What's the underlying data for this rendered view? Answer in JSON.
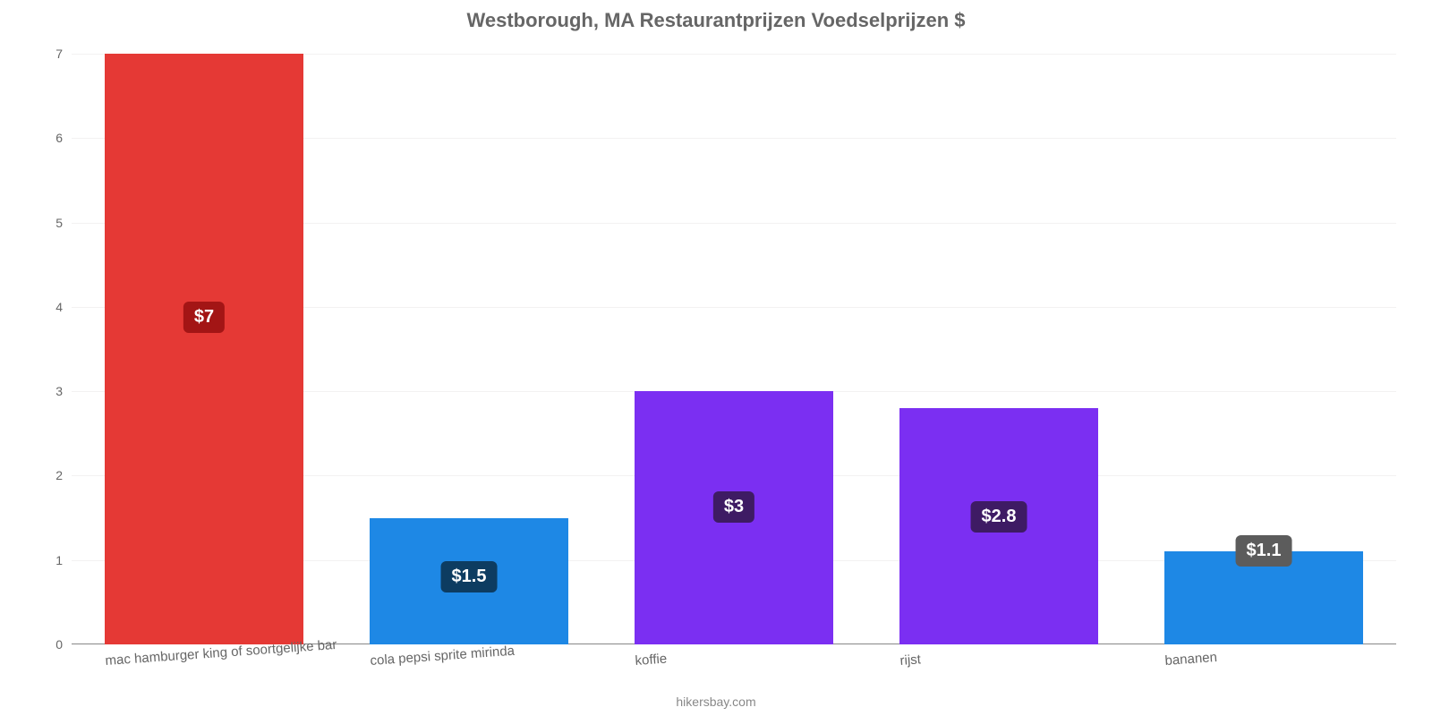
{
  "chart": {
    "type": "bar",
    "title": "Westborough, MA Restaurantprijzen Voedselprijzen $",
    "title_fontsize": 22,
    "title_color": "#666666",
    "credit": "hikersbay.com",
    "credit_color": "#888888",
    "credit_fontsize": 14,
    "background_color": "#ffffff",
    "grid_color": "#f3f1f1",
    "axis_color": "#888888",
    "ylim": [
      0,
      7
    ],
    "ytick_step": 1,
    "yticks": [
      "0",
      "1",
      "2",
      "3",
      "4",
      "5",
      "6",
      "7"
    ],
    "ytick_color": "#666666",
    "ytick_fontsize": 14,
    "xtick_color": "#666666",
    "xtick_fontsize": 15,
    "xtick_rotation_deg": -4,
    "bar_width_ratio": 0.75,
    "value_label_fontsize": 20,
    "categories": [
      "mac hamburger king of soortgelijke bar",
      "cola pepsi sprite mirinda",
      "koffie",
      "rijst",
      "bananen"
    ],
    "values": [
      7,
      1.5,
      3,
      2.8,
      1.1
    ],
    "value_labels": [
      "$7",
      "$1.5",
      "$3",
      "$2.8",
      "$1.1"
    ],
    "bar_colors": [
      "#e53935",
      "#1e88e5",
      "#7b2ff2",
      "#7b2ff2",
      "#1e88e5"
    ],
    "label_bg_colors": [
      "#a31515",
      "#0d3c61",
      "#3e1b64",
      "#3e1b64",
      "#5c5c5c"
    ],
    "label_vpos": [
      0.55,
      0.8,
      0.63,
      0.63,
      0.85
    ]
  }
}
